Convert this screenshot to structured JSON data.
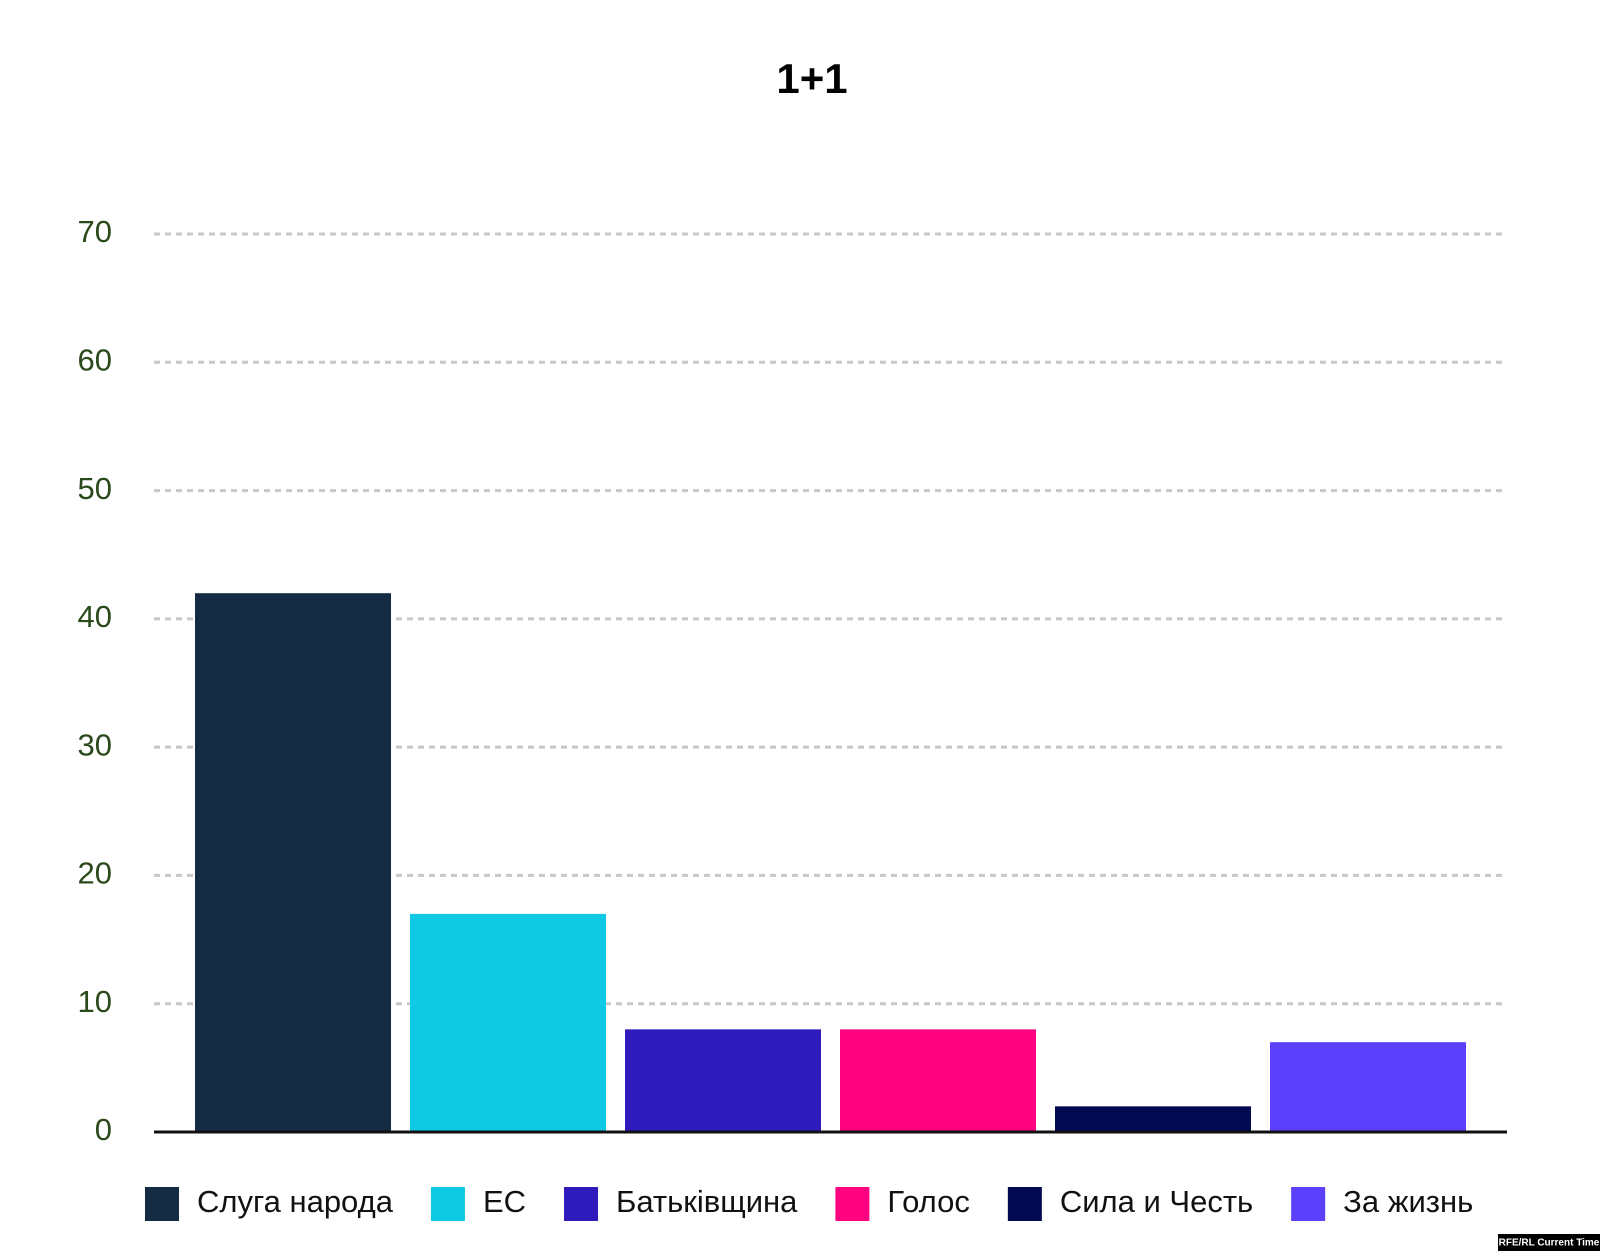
{
  "chart_data": {
    "type": "bar",
    "title": "1+1",
    "series": [
      {
        "name": "Слуга народа",
        "color": "#142b43",
        "values": [
          42
        ]
      },
      {
        "name": "ЕС",
        "color": "#0fcae2",
        "values": [
          17
        ]
      },
      {
        "name": "Батьківщина",
        "color": "#2f1bbd",
        "values": [
          8
        ]
      },
      {
        "name": "Голос",
        "color": "#fe0480",
        "values": [
          8
        ]
      },
      {
        "name": "Сила и Честь",
        "color": "#030852",
        "values": [
          2
        ]
      },
      {
        "name": "За жизнь",
        "color": "#5b40fe",
        "values": [
          7
        ]
      }
    ],
    "ylim": [
      0,
      70
    ],
    "yticks": [
      0,
      10,
      20,
      30,
      40,
      50,
      60,
      70
    ],
    "grid": true,
    "legend": "bottom",
    "credit": "RFE/RL Current Time"
  }
}
